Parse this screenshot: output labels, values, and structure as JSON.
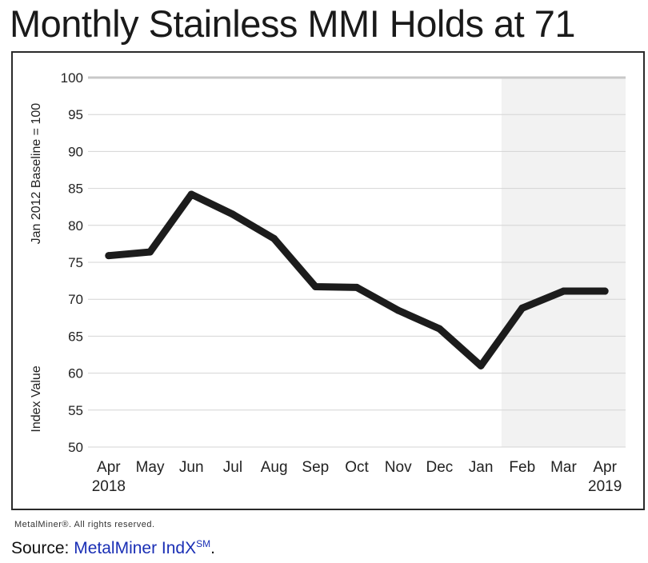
{
  "title": "Monthly Stainless MMI Holds at 71",
  "rights": "MetalMiner®. All rights reserved.",
  "source": {
    "prefix": "Source: ",
    "name": "MetalMiner IndX",
    "mark": "SM",
    "suffix": "."
  },
  "colors": {
    "line": "#1c1c1c",
    "grid": "#d4d4d4",
    "shade": "#f2f2f2",
    "source_link": "#1a2fb5"
  },
  "chart_data": {
    "type": "line",
    "title": "Monthly Stainless MMI Holds at 71",
    "ylabel_top": "Jan 2012 Baseline = 100",
    "ylabel_bottom": "Index Value",
    "categories": [
      "Apr",
      "May",
      "Jun",
      "Jul",
      "Aug",
      "Sep",
      "Oct",
      "Nov",
      "Dec",
      "Jan",
      "Feb",
      "Mar",
      "Apr"
    ],
    "year_labels": [
      {
        "index": 0,
        "text": "2018"
      },
      {
        "index": 12,
        "text": "2019"
      }
    ],
    "series": [
      {
        "values": [
          75.9,
          76.4,
          84.2,
          81.5,
          78.2,
          71.7,
          71.6,
          68.5,
          66,
          61,
          68.8,
          71.1,
          71.1
        ]
      }
    ],
    "ylim": [
      50,
      100
    ],
    "yticks": [
      50,
      55,
      60,
      65,
      70,
      75,
      80,
      85,
      90,
      95,
      100
    ],
    "grid": true,
    "shaded_from_index": 10
  }
}
